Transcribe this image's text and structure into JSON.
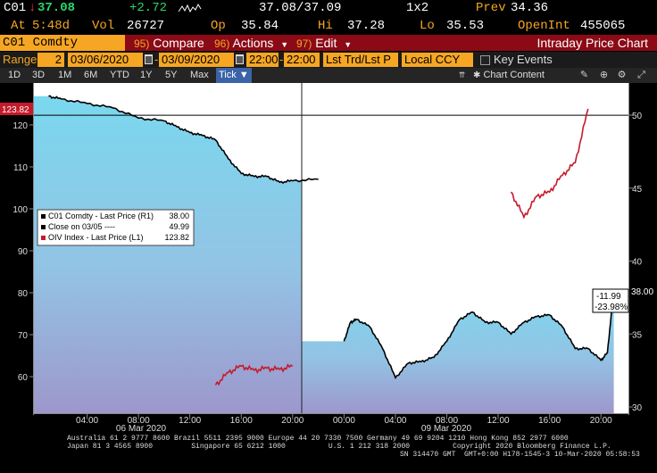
{
  "ticker": {
    "row1": {
      "symbol": "C01",
      "arrow": "↓",
      "last": "37.08",
      "change": "+2.72",
      "bid_ask": "37.08/37.09",
      "size": "1x2",
      "prev_label": "Prev",
      "prev": "34.36"
    },
    "row2": {
      "at_label": "At",
      "time": "5:48d",
      "vol_label": "Vol",
      "vol": "26727",
      "op_label": "Op",
      "op": "35.84",
      "hi_label": "Hi",
      "hi": "37.28",
      "lo_label": "Lo",
      "lo": "35.53",
      "oi_label": "OpenInt",
      "oi": "455065"
    }
  },
  "command_bar": {
    "security": "C01 Comdty",
    "compare_num": "95)",
    "compare": "Compare",
    "actions_num": "96)",
    "actions": "Actions",
    "edit_num": "97)",
    "edit": "Edit",
    "chart_title": "Intraday Price Chart"
  },
  "range_bar": {
    "range_label": "Range",
    "range_value": "2",
    "start_date": "03/06/2020",
    "end_date": "03/09/2020",
    "start_time": "22:00",
    "end_time": "22:00",
    "mode": "Lst Trd/Lst P",
    "currency": "Local CCY",
    "key_events": "Key Events"
  },
  "timeframes": {
    "items": [
      "1D",
      "3D",
      "1M",
      "6M",
      "YTD",
      "1Y",
      "5Y",
      "Max"
    ],
    "selected": "Tick",
    "chart_content": "Chart Content"
  },
  "legend": {
    "rows": [
      {
        "label": "C01 Comdty - Last Price (R1)",
        "value": "38.00",
        "color": "#ffffff"
      },
      {
        "label": "Close on 03/05 ----",
        "value": "49.99",
        "color": "#ffffff"
      },
      {
        "label": "OIV Index - Last Price (L1)",
        "value": "123.82",
        "color": "#c41a2c"
      }
    ]
  },
  "labels": {
    "left_last": "123.82",
    "right_last": "38.00",
    "change_abs": "-11.99",
    "change_pct": "-23.98%",
    "date1": "06 Mar 2020",
    "date2": "09 Mar 2020"
  },
  "axes": {
    "left_ticks": [
      "120",
      "110",
      "100",
      "90",
      "80",
      "70",
      "60"
    ],
    "right_ticks": [
      "50",
      "45",
      "40",
      "35",
      "30"
    ],
    "x_ticks": [
      "04:00",
      "08:00",
      "12:00",
      "16:00",
      "20:00",
      "00:00",
      "04:00",
      "08:00",
      "12:00",
      "16:00",
      "20:00"
    ]
  },
  "colors": {
    "oiv": "#c41a2c",
    "price": "#000000",
    "fill_top": "#7ad8ef",
    "fill_bottom": "#9d97cc",
    "command_bar": "#8b0a16",
    "input": "#f6a623"
  },
  "chart_data": {
    "type": "line",
    "series": [
      {
        "name": "C01 Comdty - Last Price (R1)",
        "axis": "right",
        "segments": [
          [
            [
              "06 Mar 01:00",
              51.3
            ],
            [
              "06 Mar 02:00",
              51.1
            ],
            [
              "06 Mar 04:00",
              50.8
            ],
            [
              "06 Mar 06:00",
              50.5
            ],
            [
              "06 Mar 08:00",
              49.8
            ],
            [
              "06 Mar 10:00",
              49.6
            ],
            [
              "06 Mar 11:00",
              49.2
            ],
            [
              "06 Mar 12:00",
              48.8
            ],
            [
              "06 Mar 13:00",
              48.6
            ],
            [
              "06 Mar 14:00",
              48.3
            ],
            [
              "06 Mar 15:00",
              47.0
            ],
            [
              "06 Mar 16:00",
              46.0
            ],
            [
              "06 Mar 17:00",
              45.8
            ],
            [
              "06 Mar 18:00",
              45.8
            ],
            [
              "06 Mar 19:00",
              45.4
            ],
            [
              "06 Mar 20:00",
              45.5
            ],
            [
              "06 Mar 22:00",
              45.6
            ]
          ],
          [
            [
              "09 Mar 00:00",
              34.5
            ],
            [
              "09 Mar 00:30",
              35.8
            ],
            [
              "09 Mar 01:00",
              36.0
            ],
            [
              "09 Mar 02:00",
              35.5
            ],
            [
              "09 Mar 03:00",
              34.0
            ],
            [
              "09 Mar 04:00",
              32.0
            ],
            [
              "09 Mar 05:00",
              33.0
            ],
            [
              "09 Mar 06:00",
              33.1
            ],
            [
              "09 Mar 07:00",
              33.4
            ],
            [
              "09 Mar 08:00",
              34.5
            ],
            [
              "09 Mar 09:00",
              36.0
            ],
            [
              "09 Mar 10:00",
              36.5
            ],
            [
              "09 Mar 11:00",
              35.8
            ],
            [
              "09 Mar 12:00",
              35.8
            ],
            [
              "09 Mar 13:00",
              35.0
            ],
            [
              "09 Mar 14:00",
              35.8
            ],
            [
              "09 Mar 15:00",
              36.2
            ],
            [
              "09 Mar 16:00",
              36.3
            ],
            [
              "09 Mar 17:00",
              35.5
            ],
            [
              "09 Mar 18:00",
              34.0
            ],
            [
              "09 Mar 19:00",
              34.0
            ],
            [
              "09 Mar 20:00",
              33.2
            ],
            [
              "09 Mar 20:30",
              33.7
            ],
            [
              "09 Mar 21:00",
              38.0
            ]
          ]
        ]
      },
      {
        "name": "OIV Index - Last Price (L1)",
        "axis": "left",
        "segments": [
          [
            [
              "06 Mar 14:00",
              58.0
            ],
            [
              "06 Mar 15:00",
              61.0
            ],
            [
              "06 Mar 16:00",
              62.5
            ],
            [
              "06 Mar 17:00",
              61.5
            ],
            [
              "06 Mar 18:00",
              62.0
            ],
            [
              "06 Mar 19:00",
              61.7
            ],
            [
              "06 Mar 20:00",
              62.5
            ]
          ],
          [
            [
              "09 Mar 13:00",
              104.0
            ],
            [
              "09 Mar 14:00",
              98.0
            ],
            [
              "09 Mar 15:00",
              103.0
            ],
            [
              "09 Mar 16:00",
              104.0
            ],
            [
              "09 Mar 17:00",
              108.0
            ],
            [
              "09 Mar 18:00",
              111.0
            ],
            [
              "09 Mar 19:00",
              123.82
            ]
          ]
        ]
      }
    ],
    "ylim_left": [
      55,
      125
    ],
    "ylim_right": [
      30,
      51
    ],
    "reference_line": {
      "label": "Close on 03/05",
      "value": 49.99,
      "axis": "right"
    },
    "grid": false,
    "legend": "upper-left"
  }
}
